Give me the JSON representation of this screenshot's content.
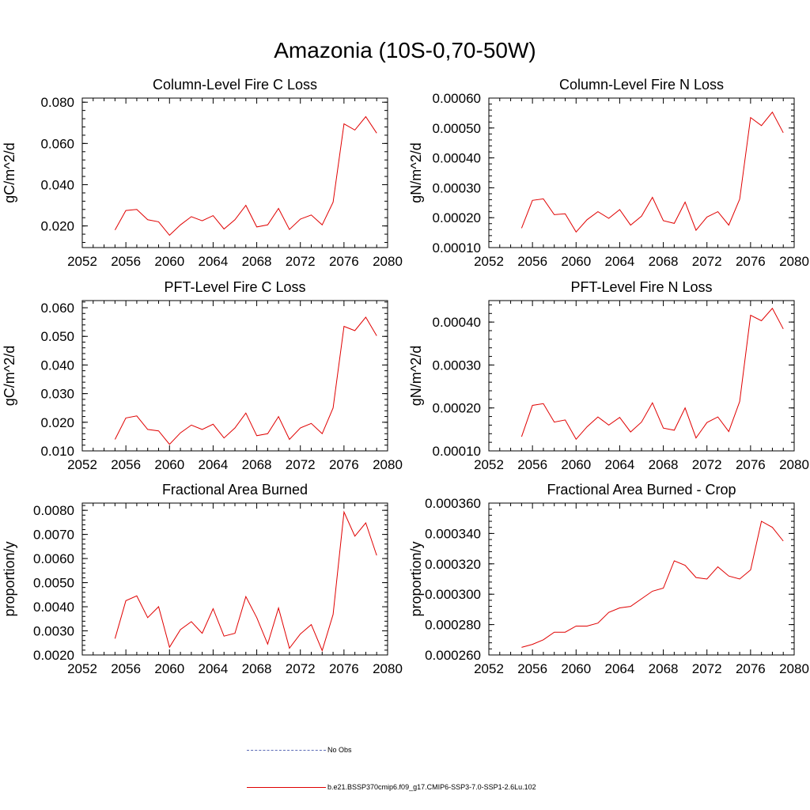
{
  "page_title": "Amazonia (10S-0,70-50W)",
  "legend": [
    {
      "label": "No Obs",
      "style": "dashed",
      "color": "#5b6bb5"
    },
    {
      "label": "b.e21.BSSP370cmip6.f09_g17.CMIP6-SSP3-7.0-SSP1-2.6Lu.102",
      "style": "solid",
      "color": "#e00000"
    }
  ],
  "chart_data": [
    {
      "type": "line",
      "title": "Column-Level Fire C Loss",
      "ylabel": "gC/m^2/d",
      "xlim": [
        2052,
        2080
      ],
      "ylim": [
        0.0095,
        0.082
      ],
      "xticks": [
        2052,
        2056,
        2060,
        2064,
        2068,
        2072,
        2076,
        2080
      ],
      "yticks": [
        0.02,
        0.04,
        0.06,
        0.08
      ],
      "ytick_labels": [
        "0.020",
        "0.040",
        "0.060",
        "0.080"
      ],
      "series": [
        {
          "color": "#e00000",
          "x": [
            2055,
            2056,
            2057,
            2058,
            2059,
            2060,
            2061,
            2062,
            2063,
            2064,
            2065,
            2066,
            2067,
            2068,
            2069,
            2070,
            2071,
            2072,
            2073,
            2074,
            2075,
            2076,
            2077,
            2078,
            2079
          ],
          "values": [
            0.018,
            0.0275,
            0.028,
            0.023,
            0.022,
            0.0155,
            0.0205,
            0.0245,
            0.0225,
            0.025,
            0.0185,
            0.023,
            0.03,
            0.0195,
            0.0205,
            0.0285,
            0.0183,
            0.0233,
            0.0253,
            0.0205,
            0.0315,
            0.0695,
            0.0665,
            0.073,
            0.065
          ]
        }
      ]
    },
    {
      "type": "line",
      "title": "Column-Level Fire N Loss",
      "ylabel": "gN/m^2/d",
      "xlim": [
        2052,
        2080
      ],
      "ylim": [
        0.0001,
        0.0006
      ],
      "xticks": [
        2052,
        2056,
        2060,
        2064,
        2068,
        2072,
        2076,
        2080
      ],
      "yticks": [
        0.0001,
        0.0002,
        0.0003,
        0.0004,
        0.0005,
        0.0006
      ],
      "ytick_labels": [
        "0.00010",
        "0.00020",
        "0.00030",
        "0.00040",
        "0.00050",
        "0.00060"
      ],
      "series": [
        {
          "color": "#e00000",
          "x": [
            2055,
            2056,
            2057,
            2058,
            2059,
            2060,
            2061,
            2062,
            2063,
            2064,
            2065,
            2066,
            2067,
            2068,
            2069,
            2070,
            2071,
            2072,
            2073,
            2074,
            2075,
            2076,
            2077,
            2078,
            2079
          ],
          "values": [
            0.000165,
            0.000258,
            0.000263,
            0.00021,
            0.000213,
            0.000152,
            0.000193,
            0.00022,
            0.000198,
            0.000227,
            0.000175,
            0.000205,
            0.000268,
            0.00019,
            0.000181,
            0.000252,
            0.000158,
            0.000202,
            0.00022,
            0.000175,
            0.000262,
            0.000535,
            0.000508,
            0.000553,
            0.000484
          ]
        }
      ]
    },
    {
      "type": "line",
      "title": "PFT-Level Fire C Loss",
      "ylabel": "gC/m^2/d",
      "xlim": [
        2052,
        2080
      ],
      "ylim": [
        0.01,
        0.0625
      ],
      "xticks": [
        2052,
        2056,
        2060,
        2064,
        2068,
        2072,
        2076,
        2080
      ],
      "yticks": [
        0.01,
        0.02,
        0.03,
        0.04,
        0.05,
        0.06
      ],
      "ytick_labels": [
        "0.010",
        "0.020",
        "0.030",
        "0.040",
        "0.050",
        "0.060"
      ],
      "series": [
        {
          "color": "#e00000",
          "x": [
            2055,
            2056,
            2057,
            2058,
            2059,
            2060,
            2061,
            2062,
            2063,
            2064,
            2065,
            2066,
            2067,
            2068,
            2069,
            2070,
            2071,
            2072,
            2073,
            2074,
            2075,
            2076,
            2077,
            2078,
            2079
          ],
          "values": [
            0.014,
            0.0215,
            0.0222,
            0.0175,
            0.017,
            0.0123,
            0.0163,
            0.019,
            0.0175,
            0.0193,
            0.0145,
            0.018,
            0.0232,
            0.0153,
            0.016,
            0.022,
            0.014,
            0.018,
            0.0196,
            0.016,
            0.025,
            0.0535,
            0.052,
            0.0567,
            0.0502
          ]
        }
      ]
    },
    {
      "type": "line",
      "title": "PFT-Level Fire N Loss",
      "ylabel": "gN/m^2/d",
      "xlim": [
        2052,
        2080
      ],
      "ylim": [
        0.0001,
        0.00045
      ],
      "xticks": [
        2052,
        2056,
        2060,
        2064,
        2068,
        2072,
        2076,
        2080
      ],
      "yticks": [
        0.0001,
        0.0002,
        0.0003,
        0.0004
      ],
      "ytick_labels": [
        "0.00010",
        "0.00020",
        "0.00030",
        "0.00040"
      ],
      "series": [
        {
          "color": "#e00000",
          "x": [
            2055,
            2056,
            2057,
            2058,
            2059,
            2060,
            2061,
            2062,
            2063,
            2064,
            2065,
            2066,
            2067,
            2068,
            2069,
            2070,
            2071,
            2072,
            2073,
            2074,
            2075,
            2076,
            2077,
            2078,
            2079
          ],
          "values": [
            0.000133,
            0.000206,
            0.00021,
            0.000167,
            0.000172,
            0.000127,
            0.000156,
            0.000179,
            0.00016,
            0.000178,
            0.000144,
            0.000167,
            0.000212,
            0.000153,
            0.000148,
            0.0002,
            0.00013,
            0.000166,
            0.000179,
            0.000145,
            0.000215,
            0.000416,
            0.000403,
            0.000432,
            0.000384
          ]
        }
      ]
    },
    {
      "type": "line",
      "title": "Fractional Area Burned",
      "ylabel": "proportion/y",
      "xlim": [
        2052,
        2080
      ],
      "ylim": [
        0.002,
        0.0083
      ],
      "xticks": [
        2052,
        2056,
        2060,
        2064,
        2068,
        2072,
        2076,
        2080
      ],
      "yticks": [
        0.002,
        0.003,
        0.004,
        0.005,
        0.006,
        0.007,
        0.008
      ],
      "ytick_labels": [
        "0.0020",
        "0.0030",
        "0.0040",
        "0.0050",
        "0.0060",
        "0.0070",
        "0.0080"
      ],
      "series": [
        {
          "color": "#e00000",
          "x": [
            2055,
            2056,
            2057,
            2058,
            2059,
            2060,
            2061,
            2062,
            2063,
            2064,
            2065,
            2066,
            2067,
            2068,
            2069,
            2070,
            2071,
            2072,
            2073,
            2074,
            2075,
            2076,
            2077,
            2078,
            2079
          ],
          "values": [
            0.00268,
            0.00425,
            0.00445,
            0.00355,
            0.004,
            0.00232,
            0.00305,
            0.00338,
            0.0029,
            0.00392,
            0.00278,
            0.0029,
            0.00442,
            0.00355,
            0.00245,
            0.00395,
            0.00228,
            0.00287,
            0.00326,
            0.00218,
            0.00368,
            0.00793,
            0.00693,
            0.00748,
            0.00613
          ]
        }
      ]
    },
    {
      "type": "line",
      "title": "Fractional Area Burned - Crop",
      "ylabel": "proportion/y",
      "xlim": [
        2052,
        2080
      ],
      "ylim": [
        0.00026,
        0.00036
      ],
      "xticks": [
        2052,
        2056,
        2060,
        2064,
        2068,
        2072,
        2076,
        2080
      ],
      "yticks": [
        0.00026,
        0.00028,
        0.0003,
        0.00032,
        0.00034,
        0.00036
      ],
      "ytick_labels": [
        "0.000260",
        "0.000280",
        "0.000300",
        "0.000320",
        "0.000340",
        "0.000360"
      ],
      "series": [
        {
          "color": "#e00000",
          "x": [
            2055,
            2056,
            2057,
            2058,
            2059,
            2060,
            2061,
            2062,
            2063,
            2064,
            2065,
            2066,
            2067,
            2068,
            2069,
            2070,
            2071,
            2072,
            2073,
            2074,
            2075,
            2076,
            2077,
            2078,
            2079
          ],
          "values": [
            0.000265,
            0.000267,
            0.00027,
            0.000275,
            0.000275,
            0.000279,
            0.000279,
            0.000281,
            0.000288,
            0.000291,
            0.000292,
            0.000297,
            0.000302,
            0.000304,
            0.000322,
            0.000319,
            0.000311,
            0.00031,
            0.000318,
            0.000312,
            0.00031,
            0.000316,
            0.000348,
            0.000344,
            0.000335
          ]
        }
      ]
    }
  ]
}
